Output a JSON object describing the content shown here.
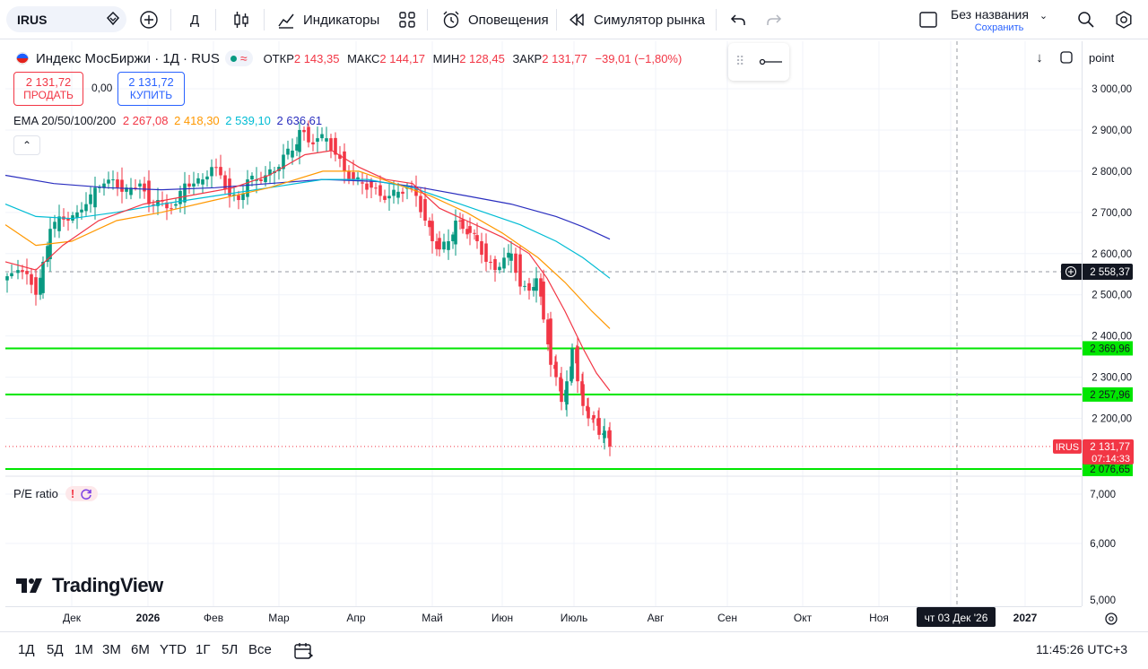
{
  "topbar": {
    "symbol": "IRUS",
    "interval": "Д",
    "indicators_label": "Индикаторы",
    "alerts_label": "Оповещения",
    "simulator_label": "Симулятор рынка",
    "layout_title": "Без названия",
    "save_label": "Сохранить"
  },
  "legend": {
    "name": "Индекс МосБиржи · 1Д · RUS",
    "open_label": "ОТКР",
    "open": "2 143,35",
    "high_label": "МАКС",
    "high": "2 144,17",
    "low_label": "МИН",
    "low": "2 128,45",
    "close_label": "ЗАКР",
    "close": "2 131,77",
    "change": "−39,01 (−1,80%)"
  },
  "trade": {
    "sell_price": "2 131,72",
    "sell_label": "ПРОДАТЬ",
    "spread": "0,00",
    "buy_price": "2 131,72",
    "buy_label": "КУПИТЬ"
  },
  "ema": {
    "label": "EMA 20/50/100/200",
    "v20": "2 267,08",
    "v50": "2 418,30",
    "v100": "2 539,10",
    "v200": "2 636,61",
    "colors": {
      "v20": "#f23645",
      "v50": "#ff9800",
      "v100": "#00bcd4",
      "v200": "#2a2ebf"
    }
  },
  "pe": {
    "label": "P/E ratio"
  },
  "logo": {
    "text": "TradingView"
  },
  "price_scale": {
    "mode_label": "point",
    "ticks": [
      "3 000,00",
      "2 900,00",
      "2 800,00",
      "2 700,00",
      "2 600,00",
      "2 500,00",
      "2 400,00",
      "2 300,00",
      "2 200,00"
    ],
    "pe_ticks": [
      "7,000",
      "6,000",
      "5,000"
    ],
    "crosshair_price": "2 558,37",
    "level1": "2 369,96",
    "level2": "2 257,96",
    "level3": "2 076,65",
    "current_symbol": "IRUS",
    "current_price": "2 131,77",
    "countdown": "07:14:33"
  },
  "time_axis": {
    "labels": [
      "Дек",
      "2026",
      "Фев",
      "Мар",
      "Апр",
      "Май",
      "Июн",
      "Июль",
      "Авг",
      "Сен",
      "Окт",
      "Ноя",
      "2027"
    ],
    "crosshair_date": "чт 03 Дек '26"
  },
  "bottombar": {
    "ranges": [
      "1Д",
      "5Д",
      "1М",
      "3М",
      "6М",
      "YTD",
      "1Г",
      "5Л",
      "Все"
    ],
    "clock": "11:45:26 UTC+3"
  },
  "colors": {
    "up": "#089981",
    "down": "#f23645",
    "level": "#00e600",
    "accent": "#2962ff"
  }
}
